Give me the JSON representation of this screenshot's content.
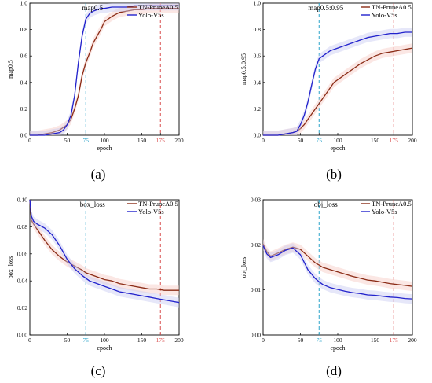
{
  "colors": {
    "series_a": "#8b2c16",
    "series_b": "#2222cc",
    "vline_a": "#2aa3c9",
    "vline_b": "#d94f4f",
    "fill_a": "#f6c9c3",
    "fill_b": "#c7c9f1"
  },
  "chart_data": [
    {
      "type": "line",
      "caption": "(a)",
      "title": "map0.5",
      "xlabel": "epoch",
      "ylabel": "map0.5",
      "xlim": [
        0,
        200
      ],
      "ylim": [
        0,
        1.0
      ],
      "xticks": [
        0,
        50,
        75,
        100,
        150,
        175,
        200
      ],
      "xtick_labels": [
        "0",
        "50",
        "75",
        "100",
        "150",
        "175",
        "200"
      ],
      "yticks": [
        0.0,
        0.2,
        0.4,
        0.6,
        0.8,
        1.0
      ],
      "ytick_labels": [
        "0.0",
        "0.2",
        "0.4",
        "0.6",
        "0.8",
        "1.0"
      ],
      "vlines": [
        75,
        175
      ],
      "legend": "top-right",
      "grid": false,
      "series": [
        {
          "name": "TN-PruneA0.5",
          "x": [
            0,
            10,
            20,
            30,
            40,
            45,
            50,
            55,
            60,
            65,
            70,
            75,
            80,
            85,
            90,
            95,
            100,
            110,
            120,
            130,
            140,
            150,
            160,
            170,
            180,
            190,
            200
          ],
          "y": [
            0.0,
            0.0,
            0.01,
            0.02,
            0.04,
            0.06,
            0.08,
            0.12,
            0.2,
            0.3,
            0.45,
            0.55,
            0.62,
            0.7,
            0.75,
            0.8,
            0.86,
            0.9,
            0.93,
            0.94,
            0.95,
            0.95,
            0.96,
            0.96,
            0.96,
            0.96,
            0.96
          ]
        },
        {
          "name": "Yolo-V5s",
          "x": [
            0,
            10,
            20,
            30,
            40,
            45,
            50,
            55,
            60,
            65,
            70,
            75,
            80,
            85,
            90,
            95,
            100,
            110,
            120,
            130,
            140,
            150,
            160,
            170,
            180,
            190,
            200
          ],
          "y": [
            0.0,
            0.0,
            0.0,
            0.01,
            0.02,
            0.04,
            0.08,
            0.15,
            0.3,
            0.55,
            0.75,
            0.88,
            0.92,
            0.94,
            0.95,
            0.96,
            0.96,
            0.97,
            0.97,
            0.97,
            0.98,
            0.98,
            0.98,
            0.98,
            0.98,
            0.98,
            0.98
          ]
        }
      ]
    },
    {
      "type": "line",
      "caption": "(b)",
      "title": "map0.5:0.95",
      "xlabel": "epoch",
      "ylabel": "map0.5:0.95",
      "xlim": [
        0,
        200
      ],
      "ylim": [
        0,
        1.0
      ],
      "xticks": [
        0,
        50,
        75,
        100,
        150,
        175,
        200
      ],
      "xtick_labels": [
        "0",
        "50",
        "75",
        "100",
        "150",
        "175",
        "200"
      ],
      "yticks": [
        0.0,
        0.2,
        0.4,
        0.6,
        0.8,
        1.0
      ],
      "ytick_labels": [
        "0.0",
        "0.2",
        "0.4",
        "0.6",
        "0.8",
        "1.0"
      ],
      "vlines": [
        75,
        175
      ],
      "legend": "top-right",
      "grid": false,
      "series": [
        {
          "name": "TN-PruneA0.5",
          "x": [
            0,
            10,
            20,
            30,
            40,
            45,
            50,
            55,
            60,
            65,
            70,
            75,
            80,
            85,
            90,
            95,
            100,
            110,
            120,
            130,
            140,
            150,
            160,
            170,
            180,
            190,
            200
          ],
          "y": [
            0.0,
            0.0,
            0.0,
            0.01,
            0.02,
            0.03,
            0.05,
            0.08,
            0.12,
            0.16,
            0.2,
            0.24,
            0.28,
            0.32,
            0.36,
            0.4,
            0.42,
            0.46,
            0.5,
            0.54,
            0.57,
            0.6,
            0.62,
            0.63,
            0.64,
            0.65,
            0.66
          ]
        },
        {
          "name": "Yolo-V5s",
          "x": [
            0,
            10,
            20,
            30,
            40,
            45,
            50,
            55,
            60,
            65,
            70,
            75,
            80,
            85,
            90,
            95,
            100,
            110,
            120,
            130,
            140,
            150,
            160,
            170,
            180,
            190,
            200
          ],
          "y": [
            0.0,
            0.0,
            0.0,
            0.01,
            0.02,
            0.03,
            0.08,
            0.15,
            0.25,
            0.38,
            0.5,
            0.58,
            0.6,
            0.62,
            0.64,
            0.65,
            0.66,
            0.68,
            0.7,
            0.72,
            0.74,
            0.75,
            0.76,
            0.77,
            0.77,
            0.78,
            0.78
          ]
        }
      ]
    },
    {
      "type": "line",
      "caption": "(c)",
      "title": "box_loss",
      "xlabel": "epoch",
      "ylabel": "box_loss",
      "xlim": [
        0,
        200
      ],
      "ylim": [
        0,
        0.1
      ],
      "xticks": [
        0,
        50,
        75,
        100,
        150,
        175,
        200
      ],
      "xtick_labels": [
        "0",
        "50",
        "75",
        "100",
        "150",
        "175",
        "200"
      ],
      "yticks": [
        0.0,
        0.02,
        0.04,
        0.06,
        0.08,
        0.1
      ],
      "ytick_labels": [
        "0.00",
        "0.02",
        "0.04",
        "0.06",
        "0.08",
        "0.10"
      ],
      "vlines": [
        75,
        175
      ],
      "legend": "top-right",
      "grid": false,
      "series": [
        {
          "name": "TN-PruneA0.5",
          "x": [
            0,
            2,
            5,
            10,
            20,
            30,
            40,
            50,
            60,
            70,
            75,
            80,
            90,
            100,
            110,
            120,
            130,
            140,
            150,
            160,
            170,
            180,
            190,
            200
          ],
          "y": [
            0.1,
            0.085,
            0.082,
            0.078,
            0.07,
            0.063,
            0.058,
            0.054,
            0.051,
            0.048,
            0.046,
            0.045,
            0.043,
            0.041,
            0.04,
            0.038,
            0.037,
            0.036,
            0.035,
            0.034,
            0.034,
            0.033,
            0.033,
            0.033
          ]
        },
        {
          "name": "Yolo-V5s",
          "x": [
            0,
            2,
            5,
            10,
            20,
            30,
            40,
            50,
            60,
            70,
            75,
            80,
            90,
            100,
            110,
            120,
            130,
            140,
            150,
            160,
            170,
            180,
            190,
            200
          ],
          "y": [
            0.1,
            0.088,
            0.084,
            0.082,
            0.079,
            0.074,
            0.066,
            0.056,
            0.049,
            0.044,
            0.042,
            0.04,
            0.038,
            0.036,
            0.034,
            0.032,
            0.031,
            0.03,
            0.029,
            0.028,
            0.027,
            0.026,
            0.025,
            0.024
          ]
        }
      ]
    },
    {
      "type": "line",
      "caption": "(d)",
      "title": "obj_loss",
      "xlabel": "epoch",
      "ylabel": "obj_loss",
      "xlim": [
        0,
        200
      ],
      "ylim": [
        0,
        0.03
      ],
      "xticks": [
        0,
        50,
        75,
        100,
        150,
        175,
        200
      ],
      "xtick_labels": [
        "0",
        "50",
        "75",
        "100",
        "150",
        "175",
        "200"
      ],
      "yticks": [
        0.0,
        0.01,
        0.02,
        0.03
      ],
      "ytick_labels": [
        "0.00",
        "0.01",
        "0.02",
        "0.03"
      ],
      "vlines": [
        75,
        175
      ],
      "legend": "top-right",
      "grid": false,
      "series": [
        {
          "name": "TN-PruneA0.5",
          "x": [
            0,
            5,
            10,
            20,
            30,
            40,
            50,
            60,
            70,
            75,
            80,
            90,
            100,
            110,
            120,
            130,
            140,
            150,
            160,
            170,
            180,
            190,
            200
          ],
          "y": [
            0.0202,
            0.0185,
            0.0175,
            0.0182,
            0.019,
            0.0195,
            0.019,
            0.0175,
            0.016,
            0.0155,
            0.015,
            0.0145,
            0.014,
            0.0135,
            0.013,
            0.0126,
            0.0122,
            0.012,
            0.0117,
            0.0114,
            0.0112,
            0.011,
            0.0108
          ]
        },
        {
          "name": "Yolo-V5s",
          "x": [
            0,
            5,
            10,
            20,
            30,
            40,
            50,
            60,
            70,
            75,
            80,
            90,
            100,
            110,
            120,
            130,
            140,
            150,
            160,
            170,
            180,
            190,
            200
          ],
          "y": [
            0.0198,
            0.018,
            0.0172,
            0.0178,
            0.0188,
            0.0193,
            0.0178,
            0.0145,
            0.0125,
            0.0118,
            0.0112,
            0.0105,
            0.0101,
            0.0097,
            0.0094,
            0.0092,
            0.0089,
            0.0088,
            0.0086,
            0.0084,
            0.0083,
            0.0081,
            0.008
          ]
        }
      ]
    }
  ]
}
